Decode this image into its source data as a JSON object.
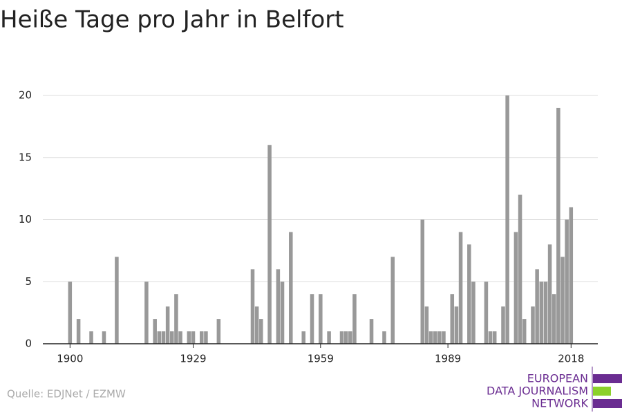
{
  "chart_data": {
    "type": "bar",
    "title": "Heiße Tage pro Jahr in Belfort",
    "x": [
      1900,
      1902,
      1905,
      1908,
      1911,
      1918,
      1920,
      1921,
      1922,
      1923,
      1924,
      1925,
      1926,
      1928,
      1929,
      1931,
      1932,
      1935,
      1943,
      1944,
      1945,
      1947,
      1949,
      1950,
      1952,
      1955,
      1957,
      1959,
      1961,
      1964,
      1965,
      1966,
      1967,
      1971,
      1974,
      1976,
      1983,
      1984,
      1985,
      1986,
      1987,
      1988,
      1990,
      1991,
      1992,
      1994,
      1995,
      1998,
      1999,
      2000,
      2002,
      2003,
      2005,
      2006,
      2007,
      2009,
      2010,
      2011,
      2012,
      2013,
      2014,
      2015,
      2016,
      2017,
      2018
    ],
    "values": [
      5,
      2,
      1,
      1,
      7,
      5,
      2,
      1,
      1,
      3,
      1,
      4,
      1,
      1,
      1,
      1,
      1,
      2,
      6,
      3,
      2,
      16,
      6,
      5,
      9,
      1,
      4,
      4,
      1,
      1,
      1,
      1,
      4,
      2,
      1,
      7,
      10,
      3,
      1,
      1,
      1,
      1,
      4,
      3,
      9,
      8,
      5,
      5,
      1,
      1,
      3,
      20,
      9,
      12,
      2,
      3,
      6,
      5,
      5,
      8,
      4,
      19,
      7,
      10,
      11
    ],
    "color": "#999999",
    "xlim": [
      1893.6,
      2024.3
    ],
    "xticks": [
      1900,
      1929,
      1959,
      1989,
      2018
    ],
    "ylim": [
      0,
      20
    ],
    "yticks": [
      0,
      5,
      10,
      15,
      20
    ],
    "grid": true,
    "source": "Quelle: EDJNet / EZMW",
    "logo": [
      "EUROPEAN",
      "DATA JOURNALISM",
      "NETWORK"
    ]
  }
}
